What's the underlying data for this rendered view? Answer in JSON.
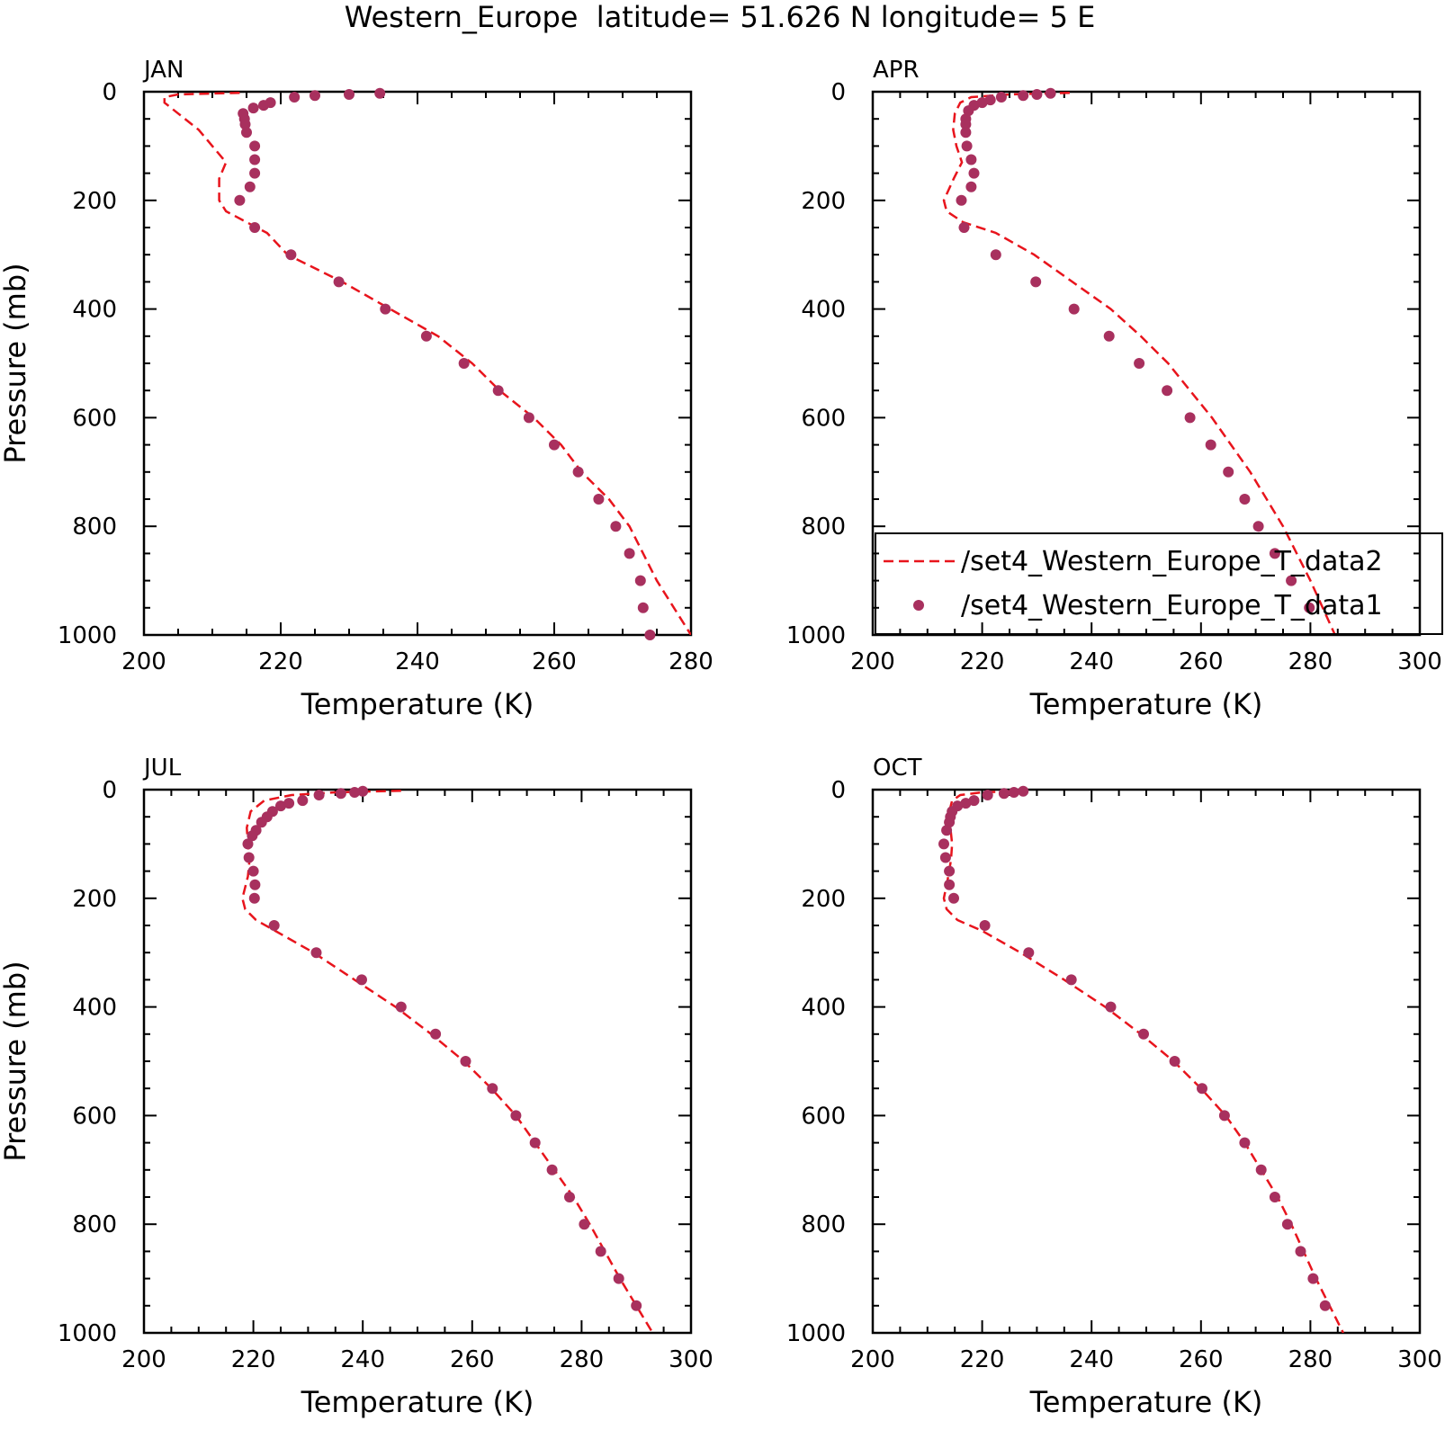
{
  "title": "Western_Europe  latitude= 51.626 N longitude= 5 E",
  "legend": {
    "placement": "bottom-right of APR panel",
    "entries": [
      {
        "label": "/set4_Western_Europe_T_data2",
        "style": "dashed-line",
        "color": "#e8141c"
      },
      {
        "label": "/set4_Western_Europe_T_data1",
        "style": "dots",
        "color": "#a8305e"
      }
    ]
  },
  "colors": {
    "line": "#e8141c",
    "dots": "#a8305e",
    "axes": "#000000"
  },
  "chart_data": [
    {
      "type": "line",
      "panel_label": "JAN",
      "xlabel": "Temperature (K)",
      "ylabel": "Pressure (mb)",
      "xlim": [
        200,
        280
      ],
      "ylim": [
        1000,
        0
      ],
      "x_ticks": [
        "200",
        "220",
        "240",
        "260",
        "280"
      ],
      "y_ticks": [
        "0",
        "200",
        "400",
        "600",
        "800",
        "1000"
      ],
      "grid": false,
      "series": [
        {
          "name": "/set4_Western_Europe_T_data2",
          "x": [
            214,
            205,
            203,
            203,
            205,
            208,
            210,
            212,
            211,
            211,
            212,
            215,
            218,
            221,
            229,
            236,
            243,
            248,
            252,
            257,
            261,
            264,
            268,
            271,
            275,
            280
          ],
          "y": [
            2,
            5,
            10,
            20,
            40,
            70,
            100,
            130,
            160,
            200,
            220,
            240,
            260,
            300,
            350,
            400,
            450,
            500,
            550,
            600,
            650,
            700,
            750,
            800,
            900,
            1000
          ]
        },
        {
          "name": "/set4_Western_Europe_T_data1",
          "x": [
            234.5,
            230,
            225,
            222,
            218.5,
            217.5,
            216,
            214.5,
            214.7,
            214.8,
            215,
            216.2,
            216.2,
            216.2,
            215.5,
            214,
            216.2,
            221.5,
            228.5,
            235.3,
            241.3,
            246.8,
            251.8,
            256.3,
            260,
            263.5,
            266.5,
            269,
            271,
            272.6,
            273,
            274
          ],
          "y": [
            3,
            5,
            7,
            10,
            20,
            25,
            30,
            40,
            50,
            60,
            75,
            100,
            125,
            150,
            175,
            200,
            250,
            300,
            350,
            400,
            450,
            500,
            550,
            600,
            650,
            700,
            750,
            800,
            850,
            900,
            950,
            1000
          ]
        }
      ]
    },
    {
      "type": "line",
      "panel_label": "APR",
      "xlabel": "Temperature (K)",
      "ylabel": "",
      "xlim": [
        200,
        300
      ],
      "ylim": [
        1000,
        0
      ],
      "x_ticks": [
        "200",
        "220",
        "240",
        "260",
        "280",
        "300"
      ],
      "y_ticks": [
        "0",
        "200",
        "400",
        "600",
        "800",
        "1000"
      ],
      "grid": false,
      "series": [
        {
          "name": "/set4_Western_Europe_T_data2",
          "x": [
            236,
            225,
            218,
            216,
            215,
            214.7,
            215.3,
            216.3,
            214.8,
            213,
            213.5,
            216.5,
            222.5,
            229.5,
            236.5,
            243.5,
            249,
            254,
            258,
            262,
            265.5,
            269,
            272,
            275,
            280,
            284.5
          ],
          "y": [
            2,
            5,
            10,
            20,
            40,
            70,
            100,
            130,
            160,
            200,
            220,
            240,
            260,
            300,
            350,
            400,
            450,
            500,
            550,
            600,
            650,
            700,
            750,
            800,
            900,
            1000
          ]
        },
        {
          "name": "/set4_Western_Europe_T_data1",
          "x": [
            232.5,
            230,
            227.5,
            223.5,
            221.5,
            220,
            218.5,
            217.5,
            217,
            217,
            217,
            217.2,
            218,
            218.5,
            218,
            216.2,
            216.7,
            222.5,
            229.8,
            236.8,
            243.2,
            248.7,
            253.8,
            258,
            261.8,
            265,
            268,
            270.5,
            273.5,
            276.5,
            279.8
          ],
          "y": [
            3,
            5,
            7,
            10,
            15,
            20,
            25,
            35,
            50,
            60,
            75,
            100,
            125,
            150,
            175,
            200,
            250,
            300,
            350,
            400,
            450,
            500,
            550,
            600,
            650,
            700,
            750,
            800,
            850,
            900,
            950
          ]
        }
      ]
    },
    {
      "type": "line",
      "panel_label": "JUL",
      "xlabel": "Temperature (K)",
      "ylabel": "Pressure (mb)",
      "xlim": [
        200,
        300
      ],
      "ylim": [
        1000,
        0
      ],
      "x_ticks": [
        "200",
        "220",
        "240",
        "260",
        "280",
        "300"
      ],
      "y_ticks": [
        "0",
        "200",
        "400",
        "600",
        "800",
        "1000"
      ],
      "grid": false,
      "series": [
        {
          "name": "/set4_Western_Europe_T_data2",
          "x": [
            247,
            235,
            227,
            222,
            219.5,
            218.8,
            219,
            219.3,
            219,
            218,
            218.5,
            220.5,
            224,
            231,
            238.5,
            246,
            252.5,
            258.5,
            263.5,
            268,
            271.5,
            275,
            278.5,
            281.5,
            287,
            293
          ],
          "y": [
            2,
            5,
            10,
            20,
            40,
            70,
            100,
            130,
            160,
            200,
            220,
            240,
            260,
            300,
            350,
            400,
            450,
            500,
            550,
            600,
            650,
            700,
            750,
            800,
            900,
            1000
          ]
        },
        {
          "name": "/set4_Western_Europe_T_data1",
          "x": [
            240,
            238.5,
            236,
            232,
            229,
            226.5,
            225,
            223.5,
            222.5,
            221.5,
            220.5,
            219.8,
            219,
            219.2,
            220,
            220.3,
            220.2,
            223.8,
            231.5,
            239.8,
            247,
            253.3,
            258.8,
            263.7,
            268,
            271.5,
            274.6,
            277.8,
            280.5,
            283.5,
            286.8,
            290
          ],
          "y": [
            3,
            5,
            7,
            10,
            20,
            25,
            30,
            40,
            50,
            60,
            75,
            85,
            100,
            125,
            150,
            175,
            200,
            250,
            300,
            350,
            400,
            450,
            500,
            550,
            600,
            650,
            700,
            750,
            800,
            850,
            900,
            950
          ]
        }
      ]
    },
    {
      "type": "line",
      "panel_label": "OCT",
      "xlabel": "Temperature (K)",
      "ylabel": "",
      "xlim": [
        200,
        300
      ],
      "ylim": [
        1000,
        0
      ],
      "x_ticks": [
        "200",
        "220",
        "240",
        "260",
        "280",
        "300"
      ],
      "y_ticks": [
        "0",
        "200",
        "400",
        "600",
        "800",
        "1000"
      ],
      "grid": false,
      "series": [
        {
          "name": "/set4_Western_Europe_T_data2",
          "x": [
            228,
            220,
            216,
            214.5,
            214,
            214.2,
            214.5,
            214.3,
            213.8,
            213,
            213.5,
            215.5,
            220,
            227,
            235,
            242.5,
            249,
            255,
            260,
            264.5,
            268,
            271,
            274,
            276.5,
            281,
            286
          ],
          "y": [
            2,
            5,
            10,
            20,
            40,
            70,
            100,
            130,
            160,
            200,
            220,
            240,
            260,
            300,
            350,
            400,
            450,
            500,
            550,
            600,
            650,
            700,
            750,
            800,
            900,
            1000
          ]
        },
        {
          "name": "/set4_Western_Europe_T_data1",
          "x": [
            227.5,
            225.8,
            224,
            221,
            218.5,
            217,
            215.5,
            214.5,
            214.2,
            214,
            213.5,
            213,
            213.3,
            214,
            214,
            214.8,
            220.5,
            228.5,
            236.3,
            243.5,
            249.5,
            255.2,
            260.2,
            264.3,
            268,
            271,
            273.5,
            275.8,
            278.2,
            280.5,
            282.7
          ],
          "y": [
            3,
            5,
            7,
            10,
            20,
            25,
            30,
            40,
            50,
            60,
            75,
            100,
            125,
            150,
            175,
            200,
            250,
            300,
            350,
            400,
            450,
            500,
            550,
            600,
            650,
            700,
            750,
            800,
            850,
            900,
            950
          ]
        }
      ]
    }
  ]
}
